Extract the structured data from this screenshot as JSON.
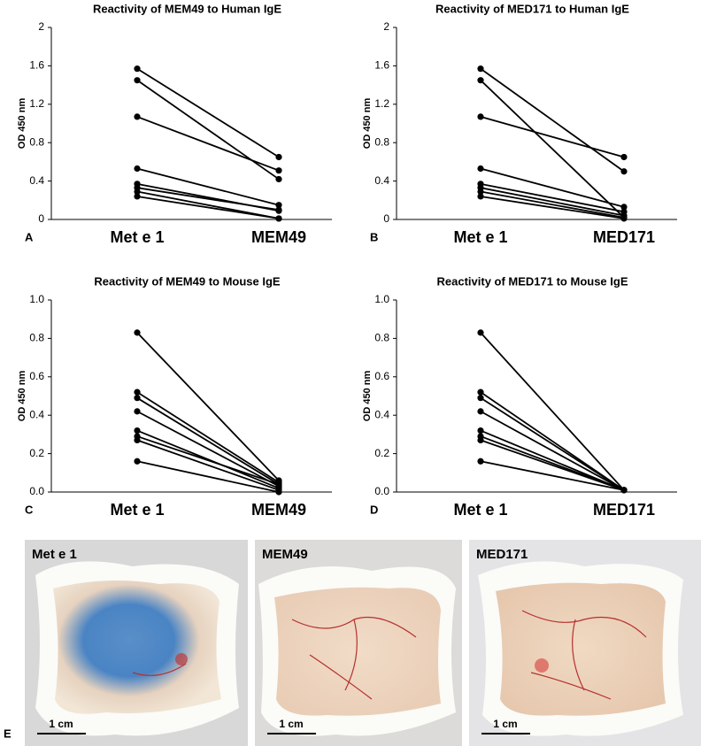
{
  "chart_data": [
    {
      "type": "line",
      "panel_label": "A",
      "title": "Reactivity of MEM49 to Human IgE",
      "y_label": "OD 450 nm",
      "categories": [
        "Met e 1",
        "MEM49"
      ],
      "color": "#000000",
      "ylim": [
        0,
        2
      ],
      "yticks": [
        0,
        0.4,
        0.8,
        1.2,
        1.6,
        2
      ],
      "series": [
        {
          "values": [
            1.57,
            0.65
          ]
        },
        {
          "values": [
            1.45,
            0.42
          ]
        },
        {
          "values": [
            1.07,
            0.51
          ]
        },
        {
          "values": [
            0.53,
            0.15
          ]
        },
        {
          "values": [
            0.37,
            0.09
          ]
        },
        {
          "values": [
            0.33,
            0.1
          ]
        },
        {
          "values": [
            0.29,
            0.01
          ]
        },
        {
          "values": [
            0.24,
            0.01
          ]
        }
      ]
    },
    {
      "type": "line",
      "panel_label": "B",
      "title": "Reactivity of MED171 to Human IgE",
      "y_label": "OD 450 nm",
      "categories": [
        "Met e 1",
        "MED171"
      ],
      "color": "#000000",
      "ylim": [
        0,
        2
      ],
      "yticks": [
        0,
        0.4,
        0.8,
        1.2,
        1.6,
        2
      ],
      "series": [
        {
          "values": [
            1.57,
            0.5
          ]
        },
        {
          "values": [
            1.45,
            0.02
          ]
        },
        {
          "values": [
            1.07,
            0.65
          ]
        },
        {
          "values": [
            0.53,
            0.13
          ]
        },
        {
          "values": [
            0.37,
            0.08
          ]
        },
        {
          "values": [
            0.33,
            0.04
          ]
        },
        {
          "values": [
            0.29,
            0.02
          ]
        },
        {
          "values": [
            0.24,
            0.01
          ]
        }
      ]
    },
    {
      "type": "line",
      "panel_label": "C",
      "title": "Reactivity of MEM49 to Mouse IgE",
      "y_label": "OD 450 nm",
      "categories": [
        "Met e 1",
        "MEM49"
      ],
      "color": "#000000",
      "ylim": [
        0,
        1
      ],
      "yticks": [
        {
          "value": 0,
          "label": "0.0"
        },
        0.2,
        0.4,
        0.6,
        0.8,
        {
          "value": 1,
          "label": "1.0"
        }
      ],
      "series": [
        {
          "values": [
            0.83,
            0.06
          ]
        },
        {
          "values": [
            0.52,
            0.05
          ]
        },
        {
          "values": [
            0.49,
            0.04
          ]
        },
        {
          "values": [
            0.42,
            0.03
          ]
        },
        {
          "values": [
            0.32,
            0.02
          ]
        },
        {
          "values": [
            0.29,
            0.04
          ]
        },
        {
          "values": [
            0.27,
            0.01
          ]
        },
        {
          "values": [
            0.16,
            0.0
          ]
        }
      ]
    },
    {
      "type": "line",
      "panel_label": "D",
      "title": "Reactivity of MED171 to Mouse IgE",
      "y_label": "OD 450 nm",
      "categories": [
        "Met e 1",
        "MED171"
      ],
      "color": "#000000",
      "ylim": [
        0,
        1
      ],
      "yticks": [
        {
          "value": 0,
          "label": "0.0"
        },
        0.2,
        0.4,
        0.6,
        0.8,
        {
          "value": 1,
          "label": "1.0"
        }
      ],
      "series": [
        {
          "values": [
            0.83,
            0.01
          ]
        },
        {
          "values": [
            0.52,
            0.01
          ]
        },
        {
          "values": [
            0.49,
            0.01
          ]
        },
        {
          "values": [
            0.42,
            0.01
          ]
        },
        {
          "values": [
            0.32,
            0.01
          ]
        },
        {
          "values": [
            0.29,
            0.01
          ]
        },
        {
          "values": [
            0.27,
            0.01
          ]
        },
        {
          "values": [
            0.16,
            0.01
          ]
        }
      ]
    }
  ],
  "photos": {
    "panel_label": "E",
    "images": [
      {
        "label": "Met e 1",
        "scale_bar": "1 cm"
      },
      {
        "label": "MEM49",
        "scale_bar": "1 cm"
      },
      {
        "label": "MED171",
        "scale_bar": "1 cm"
      }
    ]
  }
}
